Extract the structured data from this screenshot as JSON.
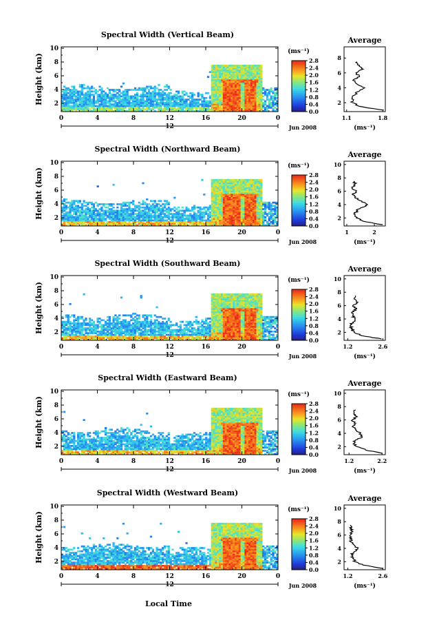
{
  "figure": {
    "xlabel": "Local Time",
    "date_label": "Jun 2008",
    "mid_label": "12",
    "colorbar_unit": "(ms⁻¹)",
    "avg_title": "Average",
    "avg_unit": "(ms⁻¹)",
    "ylabel": "Height (km)"
  },
  "chart_data": [
    {
      "type": "heatmap",
      "title": "Spectral Width (Vertical Beam)",
      "ylabel": "Height (km)",
      "x_ticks": [
        "0",
        "4",
        "8",
        "12",
        "16",
        "20",
        "0"
      ],
      "y_ticks": [
        "2",
        "4",
        "6",
        "8",
        "10"
      ],
      "xlim": [
        0,
        24
      ],
      "ylim": [
        0.8,
        10.2
      ],
      "colorbar": {
        "ticks": [
          "0.0",
          "0.4",
          "0.8",
          "1.2",
          "1.6",
          "2.0",
          "2.4",
          "2.8"
        ],
        "range": [
          0,
          2.8
        ]
      },
      "average": {
        "xticks": [
          "1.1",
          "1.8"
        ],
        "xlim": [
          1.05,
          1.85
        ],
        "yticks": [
          "2",
          "4",
          "6",
          "8"
        ],
        "ylim": [
          0.8,
          9.5
        ],
        "heights": [
          1.0,
          1.5,
          2.0,
          2.5,
          3.0,
          3.5,
          4.0,
          4.5,
          5.0,
          5.5,
          6.0,
          6.5,
          7.0,
          7.5
        ],
        "values": [
          1.82,
          1.35,
          1.22,
          1.2,
          1.25,
          1.33,
          1.45,
          1.3,
          1.22,
          1.35,
          1.28,
          1.42,
          1.35,
          1.3
        ]
      }
    },
    {
      "type": "heatmap",
      "title": "Spectral Width (Northward Beam)",
      "ylabel": "Height (km)",
      "x_ticks": [
        "0",
        "4",
        "8",
        "12",
        "16",
        "20",
        "0"
      ],
      "y_ticks": [
        "2",
        "4",
        "6",
        "8",
        "10"
      ],
      "xlim": [
        0,
        24
      ],
      "ylim": [
        0.8,
        10.2
      ],
      "colorbar": {
        "ticks": [
          "0.0",
          "0.4",
          "0.8",
          "1.2",
          "1.6",
          "2.0",
          "2.4",
          "2.8"
        ],
        "range": [
          0,
          2.8
        ]
      },
      "average": {
        "xticks": [
          "1",
          "2"
        ],
        "xlim": [
          0.9,
          2.4
        ],
        "yticks": [
          "2",
          "4",
          "6",
          "8",
          "10"
        ],
        "ylim": [
          0.8,
          10.5
        ],
        "heights": [
          1.0,
          1.5,
          2.0,
          2.5,
          3.0,
          3.5,
          4.0,
          4.5,
          5.0,
          5.5,
          6.0,
          6.5,
          7.0,
          7.5
        ],
        "values": [
          2.3,
          1.6,
          1.35,
          1.3,
          1.35,
          1.5,
          1.75,
          1.55,
          1.3,
          1.2,
          1.35,
          1.2,
          1.3,
          1.25
        ]
      }
    },
    {
      "type": "heatmap",
      "title": "Spectral Width (Southward Beam)",
      "ylabel": "Height (km)",
      "x_ticks": [
        "0",
        "4",
        "8",
        "12",
        "16",
        "20",
        "0"
      ],
      "y_ticks": [
        "2",
        "4",
        "6",
        "8",
        "10"
      ],
      "xlim": [
        0,
        24
      ],
      "ylim": [
        0.8,
        10.2
      ],
      "colorbar": {
        "ticks": [
          "0.0",
          "0.4",
          "0.8",
          "1.2",
          "1.6",
          "2.0",
          "2.4",
          "2.8"
        ],
        "range": [
          0,
          2.8
        ]
      },
      "average": {
        "xticks": [
          "1.2",
          "2.6"
        ],
        "xlim": [
          1.05,
          2.7
        ],
        "yticks": [
          "2",
          "4",
          "6",
          "8",
          "10"
        ],
        "ylim": [
          0.8,
          10.5
        ],
        "heights": [
          1.0,
          1.5,
          2.0,
          2.5,
          3.0,
          3.5,
          4.0,
          4.5,
          5.0,
          5.5,
          6.0,
          6.5,
          7.0,
          7.5
        ],
        "values": [
          2.55,
          1.75,
          1.45,
          1.35,
          1.3,
          1.4,
          1.5,
          1.4,
          1.35,
          1.55,
          1.4,
          1.6,
          1.45,
          1.5
        ]
      }
    },
    {
      "type": "heatmap",
      "title": "Spectral Width (Eastward Beam)",
      "ylabel": "Height (km)",
      "x_ticks": [
        "0",
        "4",
        "8",
        "12",
        "16",
        "20",
        "0"
      ],
      "y_ticks": [
        "2",
        "4",
        "6",
        "8",
        "10"
      ],
      "xlim": [
        0,
        24
      ],
      "ylim": [
        0.8,
        10.2
      ],
      "colorbar": {
        "ticks": [
          "0.0",
          "0.4",
          "0.8",
          "1.2",
          "1.6",
          "2.0",
          "2.4",
          "2.8"
        ],
        "range": [
          0,
          2.8
        ]
      },
      "average": {
        "xticks": [
          "1.2",
          "2.2"
        ],
        "xlim": [
          1.05,
          2.3
        ],
        "yticks": [
          "2",
          "4",
          "6",
          "8",
          "10"
        ],
        "ylim": [
          0.8,
          10.5
        ],
        "heights": [
          1.0,
          1.5,
          2.0,
          2.5,
          3.0,
          3.5,
          4.0,
          4.5,
          5.0,
          5.5,
          6.0,
          6.5,
          7.0,
          7.5
        ],
        "values": [
          2.2,
          1.7,
          1.45,
          1.35,
          1.4,
          1.6,
          1.55,
          1.4,
          1.3,
          1.4,
          1.3,
          1.45,
          1.35,
          1.4
        ]
      }
    },
    {
      "type": "heatmap",
      "title": "Spectral Width (Westward Beam)",
      "ylabel": "Height (km)",
      "x_ticks": [
        "0",
        "4",
        "8",
        "12",
        "16",
        "20",
        "0"
      ],
      "y_ticks": [
        "2",
        "4",
        "6",
        "8",
        "10"
      ],
      "xlim": [
        0,
        24
      ],
      "ylim": [
        0.8,
        10.2
      ],
      "colorbar": {
        "ticks": [
          "0.0",
          "0.4",
          "0.8",
          "1.2",
          "1.6",
          "2.0",
          "2.4",
          "2.8"
        ],
        "range": [
          0,
          2.8
        ]
      },
      "average": {
        "xticks": [
          "1.2",
          "2.6"
        ],
        "xlim": [
          1.05,
          2.7
        ],
        "yticks": [
          "2",
          "4",
          "6",
          "8",
          "10"
        ],
        "ylim": [
          0.8,
          10.5
        ],
        "heights": [
          1.0,
          1.5,
          2.0,
          2.5,
          3.0,
          3.5,
          4.0,
          4.5,
          5.0,
          5.5,
          6.0,
          6.5,
          7.0,
          7.5
        ],
        "values": [
          2.6,
          1.8,
          1.5,
          1.4,
          1.35,
          1.45,
          1.6,
          1.45,
          1.3,
          1.35,
          1.3,
          1.4,
          1.35,
          1.3
        ]
      }
    }
  ]
}
